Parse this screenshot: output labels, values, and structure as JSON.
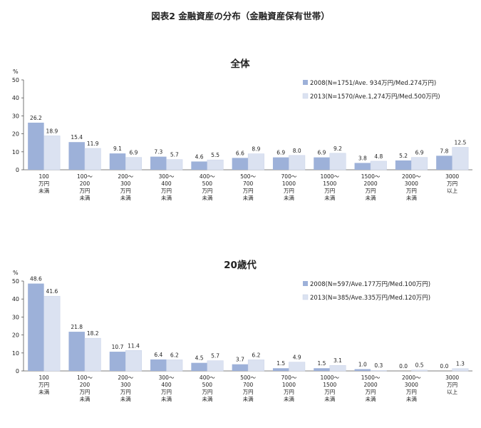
{
  "figure_title": "図表2 金融資産の分布（金融資産保有世帯）",
  "colors": {
    "series_2008": "#9db1d9",
    "series_2013": "#dbe2f1",
    "axis": "#555555"
  },
  "chart_data": [
    {
      "type": "bar",
      "title": "全体",
      "ylabel": "%",
      "ylim": [
        0,
        50
      ],
      "yticks": [
        0,
        10,
        20,
        30,
        40,
        50
      ],
      "legend_position": "top-right",
      "categories": [
        [
          "100",
          "万円",
          "未満"
        ],
        [
          "100～",
          "200",
          "万円",
          "未満"
        ],
        [
          "200～",
          "300",
          "万円",
          "未満"
        ],
        [
          "300～",
          "400",
          "万円",
          "未満"
        ],
        [
          "400～",
          "500",
          "万円",
          "未満"
        ],
        [
          "500～",
          "700",
          "万円",
          "未満"
        ],
        [
          "700～",
          "1000",
          "万円",
          "未満"
        ],
        [
          "1000～",
          "1500",
          "万円",
          "未満"
        ],
        [
          "1500～",
          "2000",
          "万円",
          "未満"
        ],
        [
          "2000～",
          "3000",
          "万円",
          "未満"
        ],
        [
          "3000",
          "万円",
          "以上"
        ]
      ],
      "series": [
        {
          "name": "2008(N=1751/Ave.  934万円/Med.274万円)",
          "values": [
            26.2,
            15.4,
            9.1,
            7.3,
            4.6,
            6.6,
            6.9,
            6.9,
            3.8,
            5.2,
            7.8
          ]
        },
        {
          "name": "2013(N=1570/Ave.1,274万円/Med.500万円)",
          "values": [
            18.9,
            11.9,
            6.9,
            5.7,
            5.5,
            8.9,
            8.0,
            9.2,
            4.8,
            6.9,
            12.5
          ]
        }
      ]
    },
    {
      "type": "bar",
      "title": "20歳代",
      "ylabel": "%",
      "ylim": [
        0,
        50
      ],
      "yticks": [
        0,
        10,
        20,
        30,
        40,
        50
      ],
      "legend_position": "top-right",
      "categories": [
        [
          "100",
          "万円",
          "未満"
        ],
        [
          "100～",
          "200",
          "万円",
          "未満"
        ],
        [
          "200～",
          "300",
          "万円",
          "未満"
        ],
        [
          "300～",
          "400",
          "万円",
          "未満"
        ],
        [
          "400～",
          "500",
          "万円",
          "未満"
        ],
        [
          "500～",
          "700",
          "万円",
          "未満"
        ],
        [
          "700～",
          "1000",
          "万円",
          "未満"
        ],
        [
          "1000～",
          "1500",
          "万円",
          "未満"
        ],
        [
          "1500～",
          "2000",
          "万円",
          "未満"
        ],
        [
          "2000～",
          "3000",
          "万円",
          "未満"
        ],
        [
          "3000",
          "万円",
          "以上"
        ]
      ],
      "series": [
        {
          "name": "2008(N=597/Ave.177万円/Med.100万円)",
          "values": [
            48.6,
            21.8,
            10.7,
            6.4,
            4.5,
            3.7,
            1.5,
            1.5,
            1.0,
            0.0,
            0.0
          ]
        },
        {
          "name": "2013(N=385/Ave.335万円/Med.120万円)",
          "values": [
            41.6,
            18.2,
            11.4,
            6.2,
            5.7,
            6.2,
            4.9,
            3.1,
            0.3,
            0.5,
            1.3
          ]
        }
      ]
    }
  ]
}
